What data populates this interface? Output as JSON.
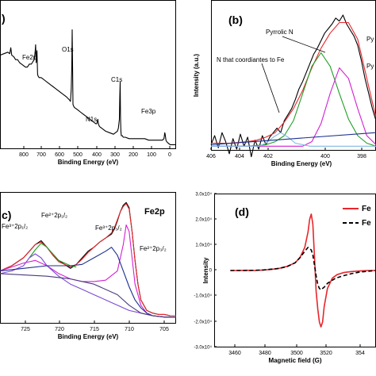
{
  "chart_data": [
    {
      "panel": "(a)",
      "type": "line",
      "panel_label": ")",
      "xlabel": "Binding Energy (eV)",
      "ylabel": "",
      "xlim": [
        900,
        0
      ],
      "ylim": [
        0,
        100
      ],
      "x_ticks": [
        "800",
        "700",
        "600",
        "500",
        "400",
        "300",
        "200",
        "100",
        "0"
      ],
      "annotations": [
        {
          "text": "O1s",
          "x": 531,
          "y": 87
        },
        {
          "text": "Fe2p",
          "x": 711,
          "y": 71
        },
        {
          "text": "C1s",
          "x": 285,
          "y": 49
        },
        {
          "text": "N1s",
          "x": 400,
          "y": 20
        },
        {
          "text": "Fe3p",
          "x": 56,
          "y": 20
        }
      ],
      "series": [
        {
          "color": "#000000",
          "x": [
            900,
            880,
            860,
            850,
            845,
            840,
            830,
            820,
            810,
            800,
            790,
            780,
            770,
            760,
            750,
            740,
            735,
            730,
            725,
            720,
            718,
            715,
            711,
            708,
            705,
            700,
            690,
            680,
            670,
            660,
            650,
            640,
            630,
            620,
            600,
            580,
            560,
            545,
            540,
            536,
            533,
            531,
            529,
            527,
            524,
            520,
            510,
            500,
            490,
            480,
            470,
            460,
            450,
            440,
            430,
            420,
            410,
            405,
            402,
            400,
            398,
            395,
            390,
            380,
            360,
            340,
            320,
            310,
            300,
            295,
            290,
            288,
            286,
            285,
            284,
            282,
            280,
            275,
            270,
            260,
            240,
            220,
            200,
            180,
            160,
            140,
            120,
            100,
            90,
            80,
            70,
            62,
            58,
            56,
            54,
            52,
            48,
            40,
            30,
            20,
            10,
            0
          ],
          "y": [
            63,
            64,
            65,
            64,
            68,
            63,
            62,
            60,
            60,
            58,
            57,
            56,
            55,
            55,
            57,
            57,
            58,
            59,
            60,
            66,
            70,
            58,
            66,
            50,
            49,
            48,
            48,
            47,
            46,
            45,
            44,
            43,
            42,
            41,
            39,
            37,
            35,
            33,
            32,
            40,
            55,
            80,
            55,
            30,
            29,
            28,
            27,
            26,
            25,
            24,
            23,
            22,
            21,
            20,
            19,
            18,
            17,
            17,
            19,
            20,
            18,
            16,
            15,
            14,
            12,
            11,
            10,
            11,
            12,
            14,
            20,
            35,
            45,
            33,
            22,
            12,
            9,
            9,
            8,
            8,
            7,
            7,
            7,
            7,
            7,
            6,
            6,
            6,
            6,
            6,
            6,
            7,
            11,
            10,
            8,
            6,
            5,
            4,
            3,
            3,
            3,
            3
          ]
        }
      ]
    },
    {
      "panel": "(b)",
      "type": "line",
      "panel_label": "(b)",
      "xlabel": "Binding Energy (eV)",
      "ylabel": "Intensity (a.u.)",
      "xlim": [
        406,
        397
      ],
      "ylim": [
        0,
        100
      ],
      "x_ticks": [
        "406",
        "404",
        "402",
        "400",
        "398"
      ],
      "annotations": [
        {
          "text": "Pyrrolic N",
          "x": 400.3,
          "y": 80
        },
        {
          "text": "N that coordiantes to Fe",
          "x": 404.1,
          "y": 38
        },
        {
          "text": "Py",
          "x": 397.4,
          "y": 80
        },
        {
          "text": "Py",
          "x": 397.6,
          "y": 54
        }
      ],
      "series": [
        {
          "color": "#000000",
          "x": [
            406,
            405.8,
            405.6,
            405.4,
            405.2,
            405,
            404.8,
            404.6,
            404.4,
            404.2,
            404,
            403.8,
            403.6,
            403.4,
            403.2,
            403,
            402.8,
            402.6,
            402.4,
            402.2,
            402,
            401.8,
            401.6,
            401.4,
            401.2,
            401,
            400.8,
            400.6,
            400.4,
            400.2,
            400,
            399.8,
            399.6,
            399.4,
            399.2,
            399,
            398.8,
            398.6,
            398.4,
            398.2,
            398,
            397.8,
            397.6,
            397.4,
            397.2,
            397
          ],
          "y": [
            4,
            10,
            2,
            12,
            6,
            -2,
            8,
            1,
            11,
            3,
            9,
            -4,
            7,
            1,
            10,
            4,
            9,
            12,
            15,
            12,
            20,
            24,
            28,
            34,
            41,
            46,
            52,
            58,
            64,
            68,
            73,
            78,
            81,
            84,
            88,
            86,
            90,
            84,
            80,
            76,
            70,
            60,
            48,
            38,
            28,
            20
          ]
        },
        {
          "color": "#e8262b",
          "x": [
            406,
            405,
            404,
            403.5,
            403,
            402.5,
            402,
            401.5,
            401,
            400.5,
            400,
            399.5,
            399,
            398.5,
            398,
            397.5,
            397
          ],
          "y": [
            5,
            5,
            6,
            7,
            9,
            12,
            19,
            28,
            40,
            55,
            68,
            78,
            85,
            85,
            74,
            48,
            22
          ]
        },
        {
          "color": "#1f9e26",
          "x": [
            406,
            404,
            403,
            402.5,
            402,
            401.5,
            401,
            400.5,
            400,
            399.5,
            399,
            398.5,
            398,
            397.5,
            397
          ],
          "y": [
            3,
            3,
            4,
            6,
            10,
            20,
            38,
            56,
            65,
            56,
            38,
            21,
            10,
            5,
            3
          ]
        },
        {
          "color": "#d41fd4",
          "x": [
            406,
            401,
            400.5,
            400,
            399.5,
            399,
            398.5,
            398,
            397.5,
            397
          ],
          "y": [
            3,
            3,
            6,
            18,
            38,
            55,
            48,
            28,
            10,
            4
          ]
        },
        {
          "color": "#7fb9e3",
          "x": [
            406,
            403.4,
            403,
            402.6,
            402.2,
            401.8,
            401.4,
            400.6,
            397
          ],
          "y": [
            3,
            3,
            5,
            9,
            12,
            9,
            5,
            3,
            3
          ]
        },
        {
          "color": "#1c2f8f",
          "x": [
            406,
            397
          ],
          "y": [
            4,
            12
          ]
        }
      ]
    },
    {
      "panel": "(c)",
      "type": "line",
      "panel_label": "c)",
      "panel_title": "Fe2p",
      "xlabel": "Binding Energy (eV)",
      "ylabel": "",
      "xlim": [
        732,
        702
      ],
      "ylim": [
        0,
        100
      ],
      "x_ticks": [
        "725",
        "720",
        "715",
        "710",
        "705"
      ],
      "annotations": [
        {
          "text": "Fe²⁺2p₁/₂",
          "x": 725,
          "y": 90
        },
        {
          "text": "Fe³⁺2p₁/₂",
          "x": 730.5,
          "y": 72
        },
        {
          "text": "Fe³⁺2p₃/₂",
          "x": 714,
          "y": 73
        },
        {
          "text": "Fe²⁺2p₃/₂",
          "x": 707.8,
          "y": 60
        }
      ],
      "series": [
        {
          "color": "#000000",
          "x": [
            732,
            731,
            730,
            729,
            728,
            727,
            726,
            725,
            724,
            723,
            722,
            721,
            720,
            719,
            718,
            717,
            716,
            715,
            714,
            713,
            712.5,
            712,
            711.5,
            711,
            710.5,
            710,
            709.5,
            709,
            708.5,
            708,
            707,
            706,
            705,
            704,
            703,
            702
          ],
          "y": [
            40,
            42,
            44,
            47,
            50,
            55,
            60,
            63,
            58,
            52,
            48,
            45,
            42,
            45,
            50,
            55,
            58,
            62,
            65,
            68,
            72,
            78,
            85,
            90,
            92,
            88,
            70,
            48,
            30,
            18,
            10,
            8,
            7,
            7,
            6,
            6
          ]
        },
        {
          "color": "#e8262b",
          "x": [
            732,
            731,
            730,
            729,
            728,
            727,
            726,
            725,
            724,
            723,
            722,
            721,
            720,
            719,
            718,
            717,
            716,
            715,
            714,
            713,
            712.5,
            712,
            711.5,
            711,
            710.5,
            710,
            709.5,
            709,
            708.5,
            708,
            707,
            706,
            705,
            704,
            703,
            702
          ],
          "y": [
            40,
            42,
            44,
            47,
            50,
            55,
            60,
            62,
            58,
            52,
            47,
            45,
            43,
            45,
            49,
            54,
            58,
            62,
            65,
            69,
            73,
            79,
            85,
            89,
            91,
            87,
            70,
            48,
            30,
            18,
            10,
            8,
            7,
            7,
            6,
            6
          ]
        },
        {
          "color": "#1f9e26",
          "x": [
            727,
            726,
            725,
            724,
            723,
            722,
            721,
            720,
            719
          ],
          "y": [
            50,
            56,
            61,
            58,
            53,
            48,
            46,
            44,
            43
          ]
        },
        {
          "color": "#d41fd4",
          "x": [
            732,
            730,
            728,
            726,
            724,
            722,
            720,
            718,
            716,
            714,
            712,
            711,
            710.5,
            710,
            709.5,
            709,
            708,
            707,
            706,
            704,
            702
          ],
          "y": [
            40,
            43,
            46,
            48,
            44,
            38,
            34,
            32,
            32,
            33,
            40,
            60,
            75,
            70,
            50,
            30,
            14,
            8,
            6,
            5,
            5
          ]
        },
        {
          "color": "#7a4ad6",
          "x": [
            732,
            730,
            728,
            727,
            726,
            725,
            724,
            722,
            720,
            718,
            716,
            714,
            712,
            710,
            708,
            706,
            704,
            702
          ],
          "y": [
            38,
            40,
            44,
            50,
            53,
            50,
            44,
            36,
            30,
            26,
            22,
            18,
            14,
            10,
            8,
            6,
            5,
            5
          ]
        },
        {
          "color": "#1c2f8f",
          "x": [
            732,
            728,
            724,
            720,
            718,
            716,
            714,
            713,
            712,
            711,
            710,
            709,
            708,
            707,
            706,
            704,
            702
          ],
          "y": [
            40,
            42,
            44,
            44,
            45,
            50,
            55,
            58,
            52,
            40,
            28,
            18,
            12,
            8,
            6,
            5,
            5
          ]
        },
        {
          "color": "#4a3a7a",
          "x": [
            732,
            724,
            720,
            716,
            712,
            710,
            708,
            706,
            704,
            702
          ],
          "y": [
            38,
            36,
            34,
            30,
            22,
            14,
            8,
            6,
            5,
            5
          ]
        }
      ]
    },
    {
      "panel": "(d)",
      "type": "line",
      "panel_label": "(d)",
      "xlabel": "Magnetic field (G)",
      "ylabel": "Intensity",
      "xlim": [
        3450,
        3550
      ],
      "ylim": [
        -30000,
        30000
      ],
      "x_ticks": [
        "3460",
        "3480",
        "3500",
        "3520",
        "354"
      ],
      "y_ticks": [
        "3.0x10⁴",
        "2.0x10⁴",
        "1.0x10⁴",
        "0",
        "-1.0x10⁴",
        "-2.0x10⁴",
        "-3.0x10⁴"
      ],
      "y_tick_values": [
        30000,
        20000,
        10000,
        0,
        -10000,
        -20000,
        -30000
      ],
      "legend": [
        "Fe",
        "Fe"
      ],
      "legend_position": "top-right",
      "series": [
        {
          "color": "#e8262b",
          "style": "solid",
          "x": [
            3460,
            3465,
            3470,
            3475,
            3480,
            3485,
            3490,
            3495,
            3500,
            3503,
            3506,
            3508,
            3509,
            3510,
            3511,
            3512,
            3513,
            3514,
            3515,
            3516,
            3517,
            3518,
            3520,
            3523,
            3526,
            3530,
            3535,
            3540,
            3545,
            3550
          ],
          "y": [
            0,
            0,
            100,
            0,
            200,
            400,
            800,
            1600,
            3000,
            5000,
            9000,
            15000,
            20000,
            22000,
            18000,
            5000,
            -8000,
            -15000,
            -20000,
            -22000,
            -20000,
            -14000,
            -7000,
            -3000,
            -1600,
            -800,
            -400,
            -200,
            0,
            0
          ]
        },
        {
          "color": "#000000",
          "style": "dashed",
          "x": [
            3460,
            3470,
            3480,
            3490,
            3495,
            3500,
            3503,
            3506,
            3508,
            3510,
            3511,
            3512,
            3513,
            3514,
            3515,
            3516,
            3518,
            3520,
            3525,
            3530,
            3535,
            3540,
            3545,
            3550
          ],
          "y": [
            0,
            0,
            200,
            800,
            1500,
            3000,
            5000,
            7500,
            9000,
            8000,
            6000,
            2000,
            -2000,
            -5500,
            -7000,
            -7500,
            -6500,
            -5000,
            -3000,
            -2000,
            -1200,
            -600,
            -300,
            0
          ]
        }
      ]
    }
  ]
}
